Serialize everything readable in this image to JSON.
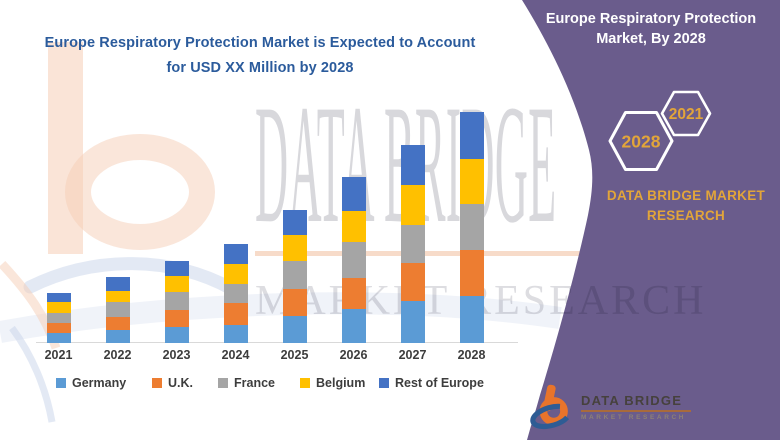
{
  "header": {
    "line1": "Europe Respiratory Protection Market is Expected to Account",
    "line2": "for USD XX Million by 2028",
    "text_color": "#2b5b9c"
  },
  "chart_data": {
    "type": "bar",
    "stacked": true,
    "title": "Europe Respiratory Protection Market is Expected to Account for USD XX Million by 2028",
    "categories": [
      "2021",
      "2022",
      "2023",
      "2024",
      "2025",
      "2026",
      "2027",
      "2028"
    ],
    "series": [
      {
        "name": "Germany",
        "color": "#5B9BD5",
        "values": [
          10,
          13,
          16,
          18,
          27,
          34,
          42,
          47
        ]
      },
      {
        "name": "U.K.",
        "color": "#ED7D31",
        "values": [
          10,
          13,
          17,
          22,
          27,
          31,
          38,
          46
        ]
      },
      {
        "name": "France",
        "color": "#A5A5A5",
        "values": [
          10,
          15,
          18,
          19,
          28,
          36,
          38,
          46
        ]
      },
      {
        "name": "Belgium",
        "color": "#FFC000",
        "values": [
          11,
          11,
          16,
          20,
          26,
          31,
          40,
          45
        ]
      },
      {
        "name": "Rest of Europe",
        "color": "#4472C4",
        "values": [
          9,
          14,
          15,
          20,
          25,
          34,
          40,
          47
        ]
      }
    ],
    "xlabel": "",
    "ylabel": "",
    "value_axis": {
      "visible": false,
      "note": "y-axis not shown; values are estimated relative units (actual figures undisclosed as USD XX Million)"
    },
    "legend_position": "bottom",
    "grid": false
  },
  "watermark": {
    "line1": "DATA BRIDGE",
    "line2": "MARKET RESEARCH"
  },
  "right_panel": {
    "bg_color": "#6a5c8c",
    "gold": "#e2a53a",
    "title_line1": "Europe Respiratory Protection",
    "title_line2": "Market, By 2028",
    "hex_large_label": "2028",
    "hex_small_label": "2021",
    "brand_line1": "DATA BRIDGE MARKET",
    "brand_line2": "RESEARCH",
    "logo_name": "DATA BRIDGE",
    "logo_sub": "MARKET RESEARCH"
  }
}
